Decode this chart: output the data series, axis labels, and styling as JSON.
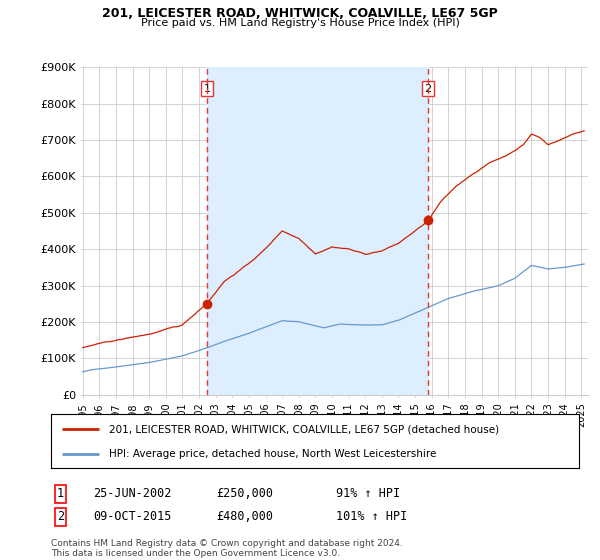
{
  "title_line1": "201, LEICESTER ROAD, WHITWICK, COALVILLE, LE67 5GP",
  "title_line2": "Price paid vs. HM Land Registry's House Price Index (HPI)",
  "ylabel_ticks": [
    "£0",
    "£100K",
    "£200K",
    "£300K",
    "£400K",
    "£500K",
    "£600K",
    "£700K",
    "£800K",
    "£900K"
  ],
  "ylim": [
    0,
    900000
  ],
  "xlim_start": 1994.9,
  "xlim_end": 2025.4,
  "sale1_date": 2002.48,
  "sale1_price": 250000,
  "sale1_label": "1",
  "sale2_date": 2015.77,
  "sale2_price": 480000,
  "sale2_label": "2",
  "hpi_color": "#6699cc",
  "price_color": "#cc2200",
  "dashed_color": "#ee3333",
  "shade_color": "#ddeeff",
  "background_color": "#ffffff",
  "grid_color": "#cccccc",
  "legend1_label": "201, LEICESTER ROAD, WHITWICK, COALVILLE, LE67 5GP (detached house)",
  "legend2_label": "HPI: Average price, detached house, North West Leicestershire",
  "table_row1": [
    "1",
    "25-JUN-2002",
    "£250,000",
    "91% ↑ HPI"
  ],
  "table_row2": [
    "2",
    "09-OCT-2015",
    "£480,000",
    "101% ↑ HPI"
  ],
  "footnote": "Contains HM Land Registry data © Crown copyright and database right 2024.\nThis data is licensed under the Open Government Licence v3.0."
}
